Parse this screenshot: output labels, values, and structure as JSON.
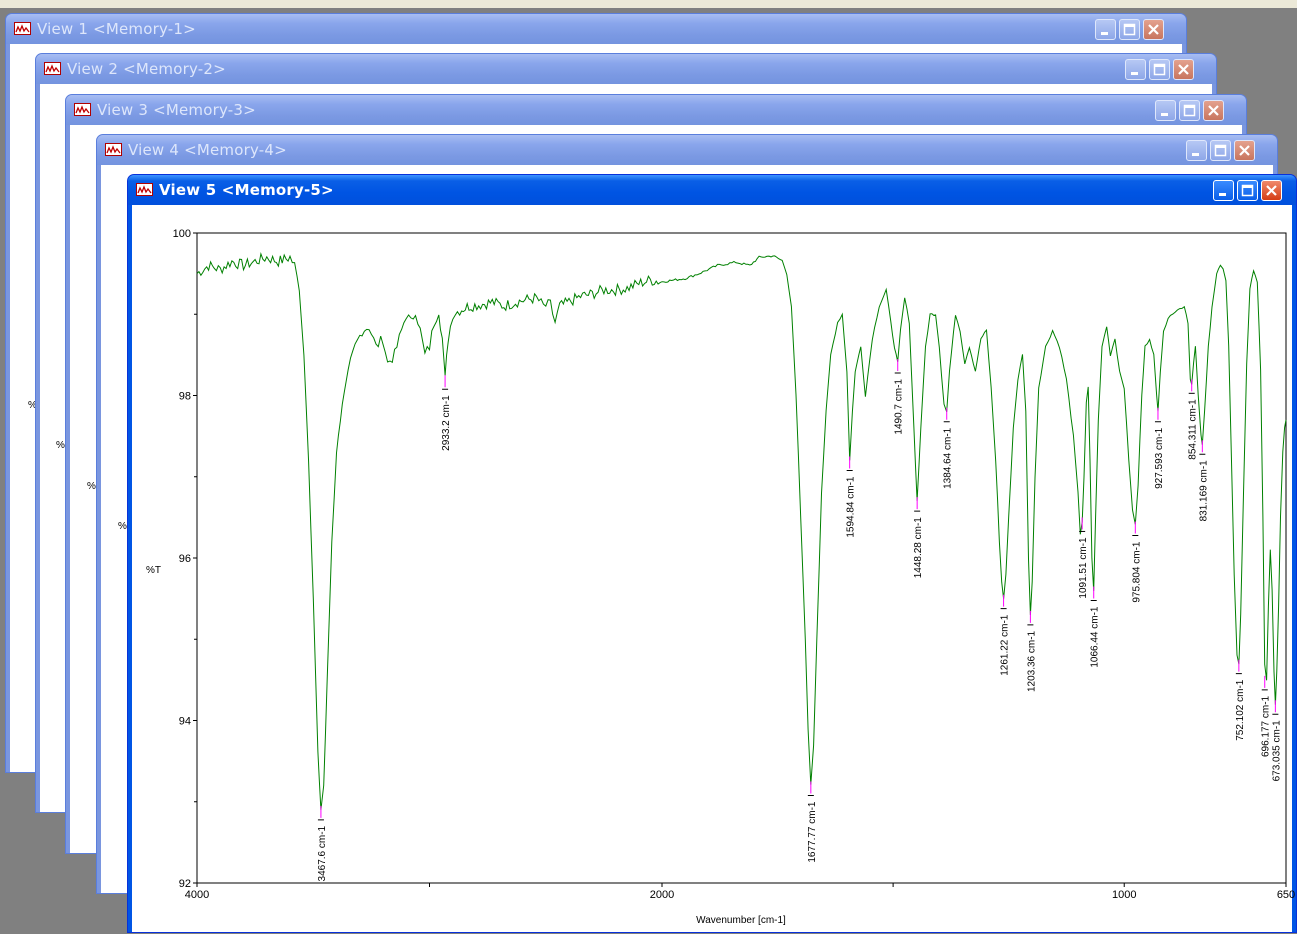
{
  "windows": [
    {
      "title": "View 1 <Memory-1>",
      "ylabel": "%T"
    },
    {
      "title": "View 2 <Memory-2>",
      "ylabel": "%"
    },
    {
      "title": "View 3 <Memory-3>",
      "ylabel": "%"
    },
    {
      "title": "View 4 <Memory-4>",
      "ylabel": "%"
    },
    {
      "title": "View 5 <Memory-5>",
      "ylabel": "%T"
    }
  ],
  "colors": {
    "spectrum": "#008000",
    "peak_marker": "#ff00ff",
    "title_active": "#0054e3",
    "title_inactive": "#7b99e3"
  },
  "icons": {
    "window": "spectrum-window-icon",
    "minimize": "minimize-icon",
    "maximize": "maximize-icon",
    "close": "close-icon"
  },
  "chart_data": {
    "type": "line",
    "title": "",
    "xlabel": "Wavenumber [cm-1]",
    "ylabel": "%T",
    "xlim": [
      4000,
      650
    ],
    "ylim": [
      92,
      100
    ],
    "x_ticks": [
      "4000",
      "2000",
      "1000",
      "650"
    ],
    "y_ticks": [
      "100",
      "98",
      "96",
      "94",
      "92"
    ],
    "series": [
      {
        "values_xy": [
          [
            4000,
            99.5
          ],
          [
            3950,
            99.6
          ],
          [
            3900,
            99.55
          ],
          [
            3850,
            99.65
          ],
          [
            3800,
            99.6
          ],
          [
            3750,
            99.65
          ],
          [
            3700,
            99.7
          ],
          [
            3650,
            99.65
          ],
          [
            3600,
            99.7
          ],
          [
            3580,
            99.6
          ],
          [
            3560,
            99.3
          ],
          [
            3540,
            98.5
          ],
          [
            3520,
            97.2
          ],
          [
            3500,
            95.5
          ],
          [
            3480,
            93.6
          ],
          [
            3467,
            92.9
          ],
          [
            3455,
            93.2
          ],
          [
            3440,
            94.5
          ],
          [
            3420,
            96.2
          ],
          [
            3400,
            97.3
          ],
          [
            3375,
            97.9
          ],
          [
            3350,
            98.3
          ],
          [
            3320,
            98.6
          ],
          [
            3290,
            98.8
          ],
          [
            3260,
            98.85
          ],
          [
            3230,
            98.6
          ],
          [
            3200,
            98.7
          ],
          [
            3180,
            98.4
          ],
          [
            3150,
            98.5
          ],
          [
            3120,
            98.8
          ],
          [
            3100,
            99.0
          ],
          [
            3080,
            98.9
          ],
          [
            3060,
            99.05
          ],
          [
            3040,
            98.8
          ],
          [
            3020,
            98.5
          ],
          [
            3000,
            98.6
          ],
          [
            2980,
            98.9
          ],
          [
            2960,
            99.05
          ],
          [
            2945,
            98.7
          ],
          [
            2933,
            98.2
          ],
          [
            2920,
            98.7
          ],
          [
            2900,
            99.0
          ],
          [
            2870,
            99.05
          ],
          [
            2830,
            99.1
          ],
          [
            2780,
            99.12
          ],
          [
            2730,
            99.15
          ],
          [
            2680,
            99.1
          ],
          [
            2630,
            99.15
          ],
          [
            2580,
            99.18
          ],
          [
            2540,
            99.2
          ],
          [
            2510,
            99.1
          ],
          [
            2480,
            99.12
          ],
          [
            2460,
            98.9
          ],
          [
            2440,
            99.1
          ],
          [
            2400,
            99.15
          ],
          [
            2350,
            99.22
          ],
          [
            2300,
            99.25
          ],
          [
            2250,
            99.3
          ],
          [
            2200,
            99.3
          ],
          [
            2150,
            99.32
          ],
          [
            2100,
            99.38
          ],
          [
            2050,
            99.42
          ],
          [
            2000,
            99.4
          ],
          [
            1950,
            99.44
          ],
          [
            1920,
            99.5
          ],
          [
            1880,
            99.6
          ],
          [
            1840,
            99.64
          ],
          [
            1810,
            99.6
          ],
          [
            1790,
            99.7
          ],
          [
            1760,
            99.72
          ],
          [
            1740,
            99.66
          ],
          [
            1730,
            99.5
          ],
          [
            1720,
            99.1
          ],
          [
            1710,
            98.0
          ],
          [
            1700,
            96.5
          ],
          [
            1690,
            95.0
          ],
          [
            1684,
            93.9
          ],
          [
            1678,
            93.2
          ],
          [
            1672,
            93.7
          ],
          [
            1665,
            95.0
          ],
          [
            1655,
            96.8
          ],
          [
            1645,
            97.8
          ],
          [
            1635,
            98.5
          ],
          [
            1620,
            98.9
          ],
          [
            1610,
            99.0
          ],
          [
            1600,
            98.3
          ],
          [
            1594,
            97.2
          ],
          [
            1588,
            97.8
          ],
          [
            1582,
            98.3
          ],
          [
            1570,
            98.6
          ],
          [
            1560,
            98.0
          ],
          [
            1545,
            98.7
          ],
          [
            1530,
            99.1
          ],
          [
            1515,
            99.3
          ],
          [
            1505,
            98.9
          ],
          [
            1497,
            98.6
          ],
          [
            1490,
            98.4
          ],
          [
            1484,
            98.8
          ],
          [
            1475,
            99.2
          ],
          [
            1465,
            98.9
          ],
          [
            1455,
            97.6
          ],
          [
            1448,
            96.7
          ],
          [
            1440,
            97.6
          ],
          [
            1430,
            98.6
          ],
          [
            1420,
            99.0
          ],
          [
            1408,
            99.0
          ],
          [
            1400,
            98.6
          ],
          [
            1390,
            97.9
          ],
          [
            1384,
            97.8
          ],
          [
            1378,
            98.3
          ],
          [
            1365,
            99.0
          ],
          [
            1355,
            98.8
          ],
          [
            1345,
            98.4
          ],
          [
            1335,
            98.6
          ],
          [
            1322,
            98.3
          ],
          [
            1310,
            98.7
          ],
          [
            1298,
            98.8
          ],
          [
            1288,
            98.1
          ],
          [
            1278,
            97.2
          ],
          [
            1270,
            96.2
          ],
          [
            1265,
            95.7
          ],
          [
            1261,
            95.5
          ],
          [
            1256,
            95.8
          ],
          [
            1250,
            96.5
          ],
          [
            1240,
            97.6
          ],
          [
            1230,
            98.2
          ],
          [
            1220,
            98.5
          ],
          [
            1213,
            97.8
          ],
          [
            1207,
            96.0
          ],
          [
            1203,
            95.3
          ],
          [
            1199,
            95.7
          ],
          [
            1193,
            97.0
          ],
          [
            1185,
            98.1
          ],
          [
            1170,
            98.6
          ],
          [
            1155,
            98.8
          ],
          [
            1140,
            98.6
          ],
          [
            1125,
            98.2
          ],
          [
            1110,
            97.5
          ],
          [
            1100,
            96.8
          ],
          [
            1095,
            96.3
          ],
          [
            1091,
            96.45
          ],
          [
            1087,
            97.0
          ],
          [
            1082,
            97.9
          ],
          [
            1078,
            98.1
          ],
          [
            1074,
            97.2
          ],
          [
            1070,
            96.0
          ],
          [
            1066,
            95.6
          ],
          [
            1062,
            96.5
          ],
          [
            1056,
            97.7
          ],
          [
            1048,
            98.6
          ],
          [
            1038,
            98.85
          ],
          [
            1030,
            98.5
          ],
          [
            1020,
            98.7
          ],
          [
            1010,
            98.3
          ],
          [
            1000,
            98.1
          ],
          [
            990,
            97.2
          ],
          [
            982,
            96.6
          ],
          [
            976,
            96.4
          ],
          [
            970,
            96.9
          ],
          [
            962,
            98.0
          ],
          [
            955,
            98.6
          ],
          [
            945,
            98.7
          ],
          [
            936,
            98.5
          ],
          [
            930,
            98.0
          ],
          [
            927,
            97.8
          ],
          [
            922,
            98.3
          ],
          [
            915,
            98.8
          ],
          [
            900,
            99.0
          ],
          [
            885,
            99.05
          ],
          [
            870,
            99.1
          ],
          [
            862,
            98.9
          ],
          [
            857,
            98.2
          ],
          [
            854,
            98.15
          ],
          [
            850,
            98.4
          ],
          [
            846,
            98.6
          ],
          [
            840,
            98.0
          ],
          [
            834,
            97.5
          ],
          [
            831,
            97.4
          ],
          [
            826,
            97.8
          ],
          [
            818,
            98.6
          ],
          [
            810,
            99.1
          ],
          [
            800,
            99.5
          ],
          [
            792,
            99.6
          ],
          [
            786,
            99.55
          ],
          [
            780,
            99.4
          ],
          [
            774,
            98.6
          ],
          [
            768,
            97.2
          ],
          [
            762,
            95.8
          ],
          [
            756,
            94.8
          ],
          [
            752,
            94.7
          ],
          [
            748,
            95.3
          ],
          [
            742,
            96.8
          ],
          [
            735,
            98.4
          ],
          [
            728,
            99.3
          ],
          [
            720,
            99.55
          ],
          [
            712,
            99.4
          ],
          [
            705,
            98.3
          ],
          [
            700,
            96.5
          ],
          [
            696,
            94.7
          ],
          [
            692,
            94.5
          ],
          [
            688,
            95.4
          ],
          [
            684,
            96.1
          ],
          [
            680,
            95.6
          ],
          [
            676,
            94.6
          ],
          [
            673,
            94.2
          ],
          [
            670,
            94.6
          ],
          [
            666,
            95.4
          ],
          [
            662,
            96.5
          ],
          [
            657,
            97.3
          ],
          [
            653,
            97.6
          ],
          [
            650,
            97.7
          ]
        ]
      }
    ],
    "peak_labels": [
      {
        "wavenumber": 3467,
        "y": 92.9,
        "text": "3467.6 cm-1"
      },
      {
        "wavenumber": 2933,
        "y": 98.2,
        "text": "2933.2 cm-1"
      },
      {
        "wavenumber": 1678,
        "y": 93.2,
        "text": "1677.77 cm-1"
      },
      {
        "wavenumber": 1594,
        "y": 97.2,
        "text": "1594.84 cm-1"
      },
      {
        "wavenumber": 1490,
        "y": 98.4,
        "text": "1490.7 cm-1"
      },
      {
        "wavenumber": 1448,
        "y": 96.7,
        "text": "1448.28 cm-1"
      },
      {
        "wavenumber": 1384,
        "y": 97.8,
        "text": "1384.64 cm-1"
      },
      {
        "wavenumber": 1261,
        "y": 95.5,
        "text": "1261.22 cm-1"
      },
      {
        "wavenumber": 1203,
        "y": 95.3,
        "text": "1203.36 cm-1"
      },
      {
        "wavenumber": 1091,
        "y": 96.45,
        "text": "1091.51 cm-1"
      },
      {
        "wavenumber": 1066,
        "y": 95.6,
        "text": "1066.44 cm-1"
      },
      {
        "wavenumber": 976,
        "y": 96.4,
        "text": "975.804 cm-1"
      },
      {
        "wavenumber": 927,
        "y": 97.8,
        "text": "927.593 cm-1"
      },
      {
        "wavenumber": 854,
        "y": 98.15,
        "text": "854.311 cm-1"
      },
      {
        "wavenumber": 831,
        "y": 97.4,
        "text": "831.169 cm-1"
      },
      {
        "wavenumber": 752,
        "y": 94.7,
        "text": "752.102 cm-1"
      },
      {
        "wavenumber": 696,
        "y": 94.5,
        "text": "696.177 cm-1"
      },
      {
        "wavenumber": 673,
        "y": 94.2,
        "text": "673.035 cm-1"
      }
    ]
  }
}
